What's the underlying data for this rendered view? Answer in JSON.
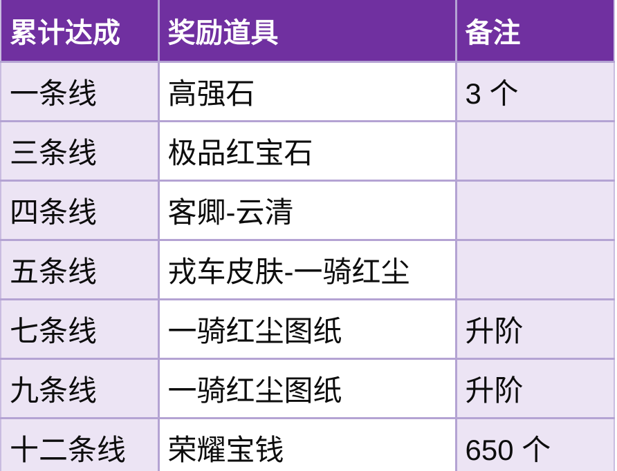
{
  "chart_data": {
    "type": "table",
    "columns": [
      "累计达成",
      "奖励道具",
      "备注"
    ],
    "rows": [
      [
        "一条线",
        "高强石",
        "3 个"
      ],
      [
        "三条线",
        "极品红宝石",
        ""
      ],
      [
        "四条线",
        "客卿-云清",
        ""
      ],
      [
        "五条线",
        "戎车皮肤-一骑红尘",
        ""
      ],
      [
        "七条线",
        "一骑红尘图纸",
        "升阶"
      ],
      [
        "九条线",
        "一骑红尘图纸",
        "升阶"
      ],
      [
        "十二条线",
        "荣耀宝钱",
        "650 个"
      ]
    ],
    "layout": {
      "header_row": true,
      "banded_columns": "columns 1 and 3 lavender, column 2 white",
      "grid": true
    }
  },
  "style": {
    "header_bg": "#7030A0",
    "header_text": "#FFFFFF",
    "band_bg": "#ECE4F4",
    "cell_bg": "#FFFFFF",
    "inner_border": "#B4A3D3",
    "outer_border": "#C9BCE0",
    "body_text": "#0D0D0D"
  }
}
